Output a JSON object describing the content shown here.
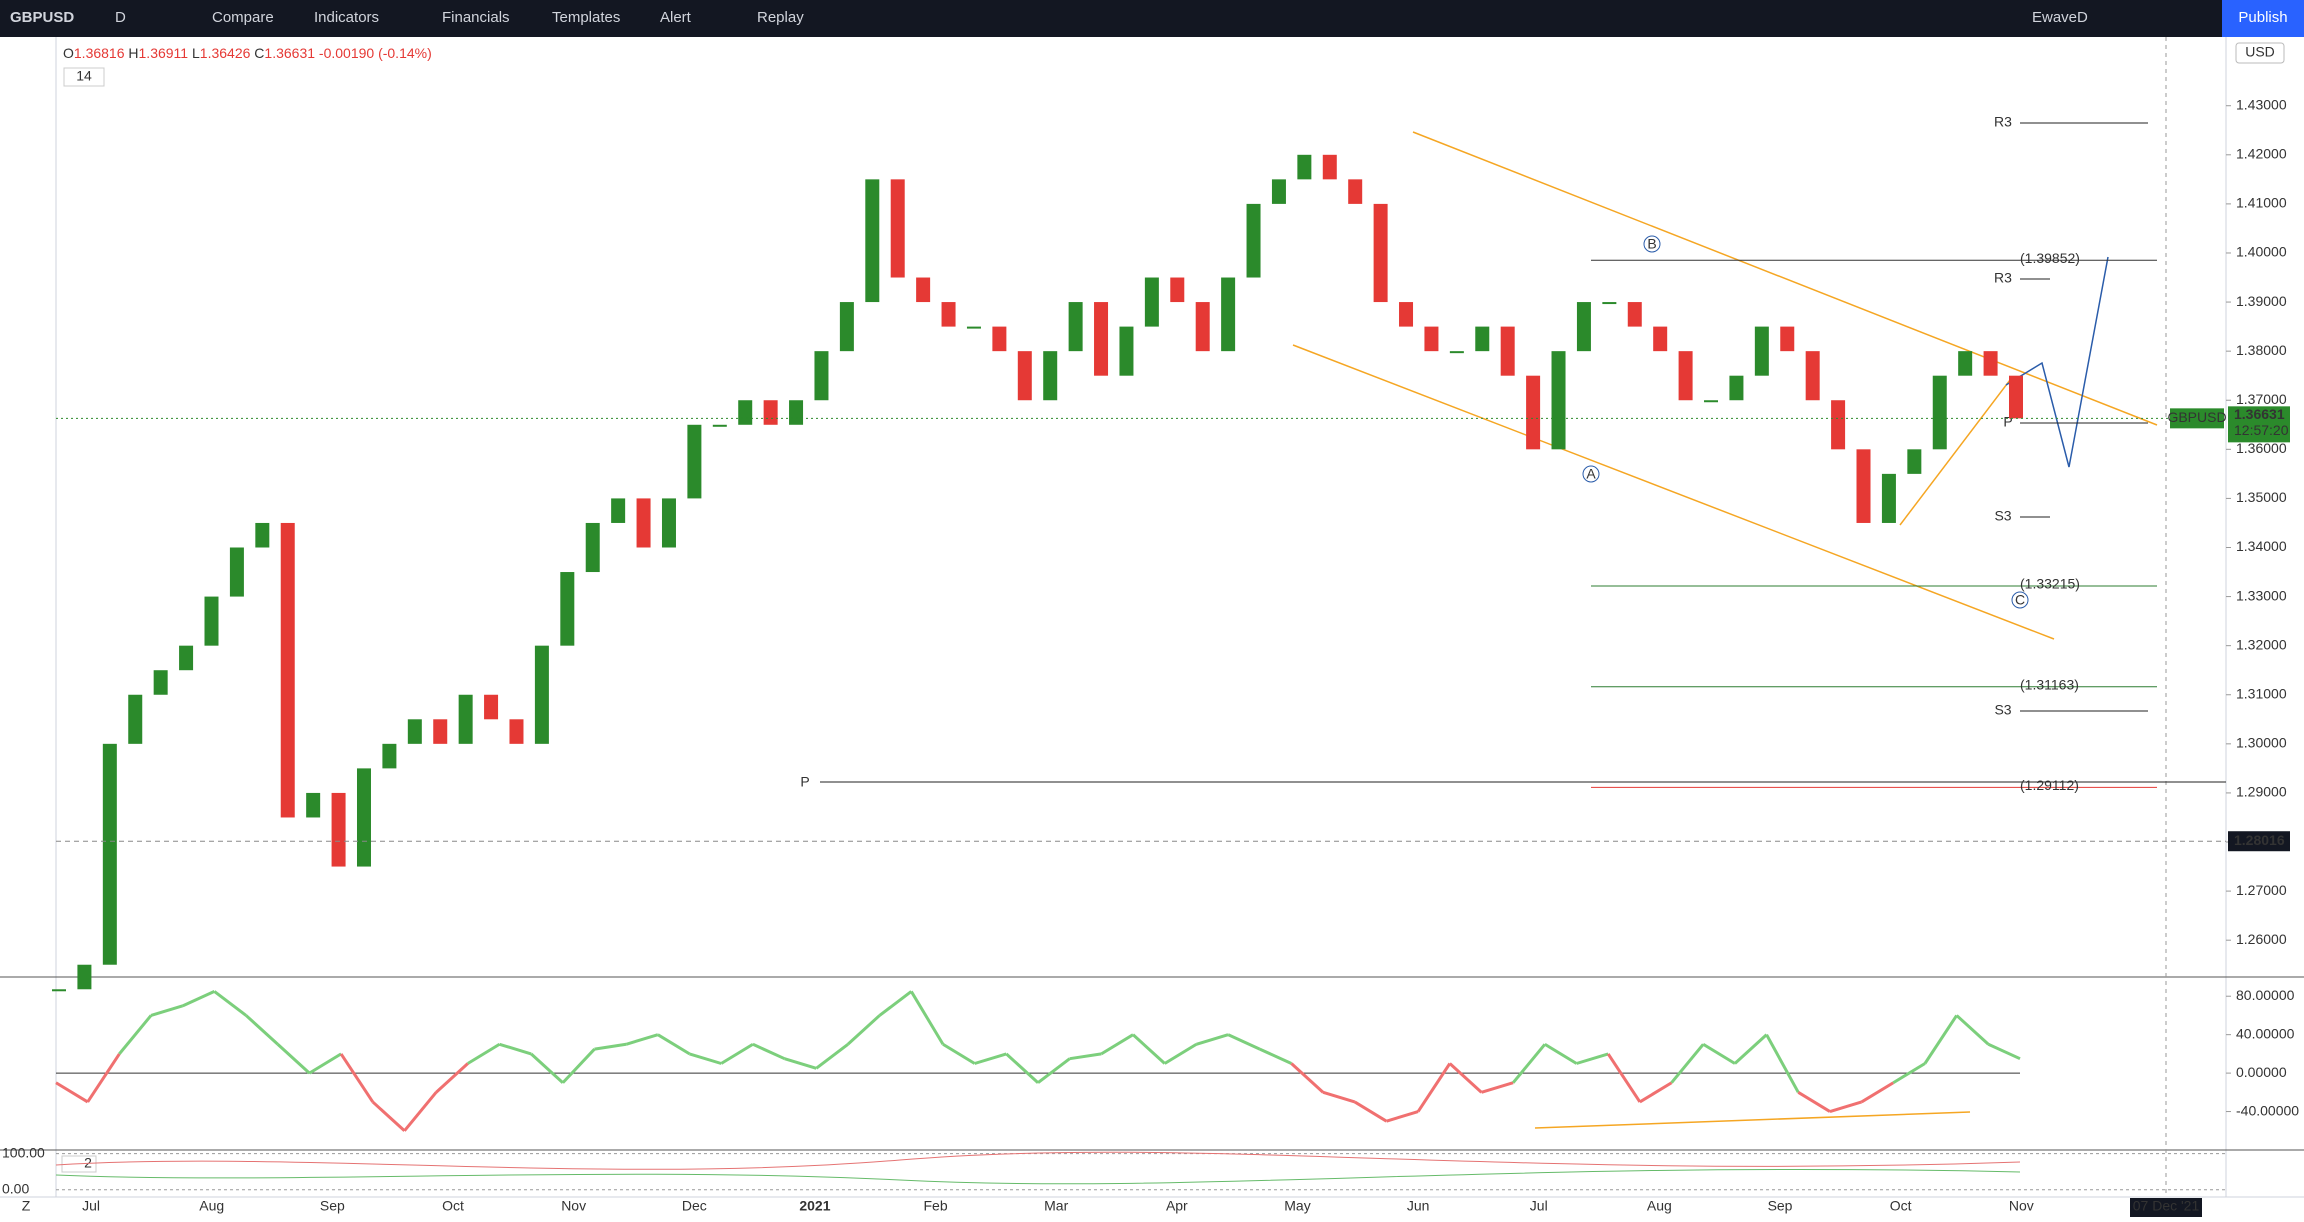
{
  "toolbar": {
    "symbol": "GBPUSD",
    "interval": "D",
    "items": [
      "Compare",
      "Indicators",
      "Financials",
      "Templates",
      "Alert",
      "Replay"
    ],
    "user": "EwaveD",
    "publish": "Publish"
  },
  "legend": {
    "open_label": "O",
    "open": "1.36816",
    "high_label": "H",
    "high": "1.36911",
    "low_label": "L",
    "low": "1.36426",
    "close_label": "C",
    "close": "1.36631",
    "change": "-0.00190 (-0.14%)",
    "period": "14"
  },
  "price_chart": {
    "type": "candlestick",
    "closes": [
      1.25,
      1.255,
      1.3,
      1.31,
      1.315,
      1.32,
      1.33,
      1.34,
      1.345,
      1.285,
      1.29,
      1.275,
      1.295,
      1.3,
      1.305,
      1.3,
      1.31,
      1.305,
      1.3,
      1.32,
      1.335,
      1.345,
      1.35,
      1.34,
      1.35,
      1.365,
      1.365,
      1.37,
      1.365,
      1.37,
      1.38,
      1.39,
      1.415,
      1.395,
      1.39,
      1.385,
      1.385,
      1.38,
      1.37,
      1.38,
      1.39,
      1.375,
      1.385,
      1.395,
      1.39,
      1.38,
      1.395,
      1.41,
      1.415,
      1.42,
      1.415,
      1.41,
      1.39,
      1.385,
      1.38,
      1.38,
      1.385,
      1.375,
      1.36,
      1.38,
      1.39,
      1.39,
      1.385,
      1.38,
      1.37,
      1.37,
      1.375,
      1.385,
      1.38,
      1.37,
      1.36,
      1.345,
      1.355,
      1.36,
      1.375,
      1.38,
      1.375,
      1.36631
    ],
    "up_color": "#2b8a2b",
    "down_color": "#e53935",
    "ylim": [
      1.2525,
      1.444
    ],
    "yticks": [
      {
        "value": 1.26,
        "label": "1.26000"
      },
      {
        "value": 1.27,
        "label": "1.27000"
      },
      {
        "value": 1.28,
        "label": "1.28000"
      },
      {
        "value": 1.29,
        "label": "1.29000"
      },
      {
        "value": 1.3,
        "label": "1.30000"
      },
      {
        "value": 1.31,
        "label": "1.31000"
      },
      {
        "value": 1.32,
        "label": "1.32000"
      },
      {
        "value": 1.33,
        "label": "1.33000"
      },
      {
        "value": 1.34,
        "label": "1.34000"
      },
      {
        "value": 1.35,
        "label": "1.35000"
      },
      {
        "value": 1.36,
        "label": "1.36000"
      },
      {
        "value": 1.37,
        "label": "1.37000"
      },
      {
        "value": 1.38,
        "label": "1.38000"
      },
      {
        "value": 1.39,
        "label": "1.39000"
      },
      {
        "value": 1.4,
        "label": "1.40000"
      },
      {
        "value": 1.41,
        "label": "1.41000"
      },
      {
        "value": 1.42,
        "label": "1.42000"
      },
      {
        "value": 1.43,
        "label": "1.43000"
      }
    ],
    "currency": "USD",
    "last": {
      "value": 1.36631,
      "label": "1.36631",
      "symbol": "GBPUSD",
      "countdown": "12:57:20"
    },
    "crosshair": {
      "value": 1.28016,
      "label": "1.28016"
    },
    "levels": [
      {
        "value": 1.39852,
        "label": "(1.39852)",
        "color": "#333333"
      },
      {
        "value": 1.33215,
        "label": "(1.33215)",
        "color": "#2e7d32"
      },
      {
        "value": 1.31163,
        "label": "(1.31163)",
        "color": "#2e7d32"
      },
      {
        "value": 1.29112,
        "label": "(1.29112)",
        "color": "#e53935"
      }
    ],
    "pivot_labels": [
      "R3",
      "R3",
      "P",
      "P",
      "S3",
      "S3"
    ],
    "waves": [
      "A",
      "B",
      "C"
    ]
  },
  "x_axis": [
    "Jul",
    "Aug",
    "Sep",
    "Oct",
    "Nov",
    "Dec",
    "2021",
    "Feb",
    "Mar",
    "Apr",
    "May",
    "Jun",
    "Jul",
    "Aug",
    "Sep",
    "Oct",
    "Nov"
  ],
  "oscillator": {
    "values": [
      -10,
      -30,
      20,
      60,
      70,
      85,
      60,
      30,
      0,
      20,
      -30,
      -60,
      -20,
      10,
      30,
      20,
      -10,
      25,
      30,
      40,
      20,
      10,
      30,
      15,
      5,
      30,
      60,
      85,
      30,
      10,
      20,
      -10,
      15,
      20,
      40,
      10,
      30,
      40,
      25,
      10,
      -20,
      -30,
      -50,
      -40,
      10,
      -20,
      -10,
      30,
      10,
      20,
      -30,
      -10,
      30,
      10,
      40,
      -20,
      -40,
      -30,
      -10,
      10,
      60,
      30,
      15
    ],
    "ylim": [
      -80,
      100
    ],
    "yticks": [
      {
        "value": 80,
        "label": "80.00000"
      },
      {
        "value": 40,
        "label": "40.00000"
      },
      {
        "value": 0,
        "label": "0.00000"
      },
      {
        "value": -40,
        "label": "-40.00000"
      }
    ]
  },
  "lower_pane": {
    "label": "2",
    "ylim": [
      -20,
      110
    ],
    "yticks": [
      {
        "value": 100,
        "label": "100.00"
      },
      {
        "value": 0,
        "label": "0.00"
      }
    ]
  },
  "date_label": "07 Dec '21",
  "timezone": "Z"
}
